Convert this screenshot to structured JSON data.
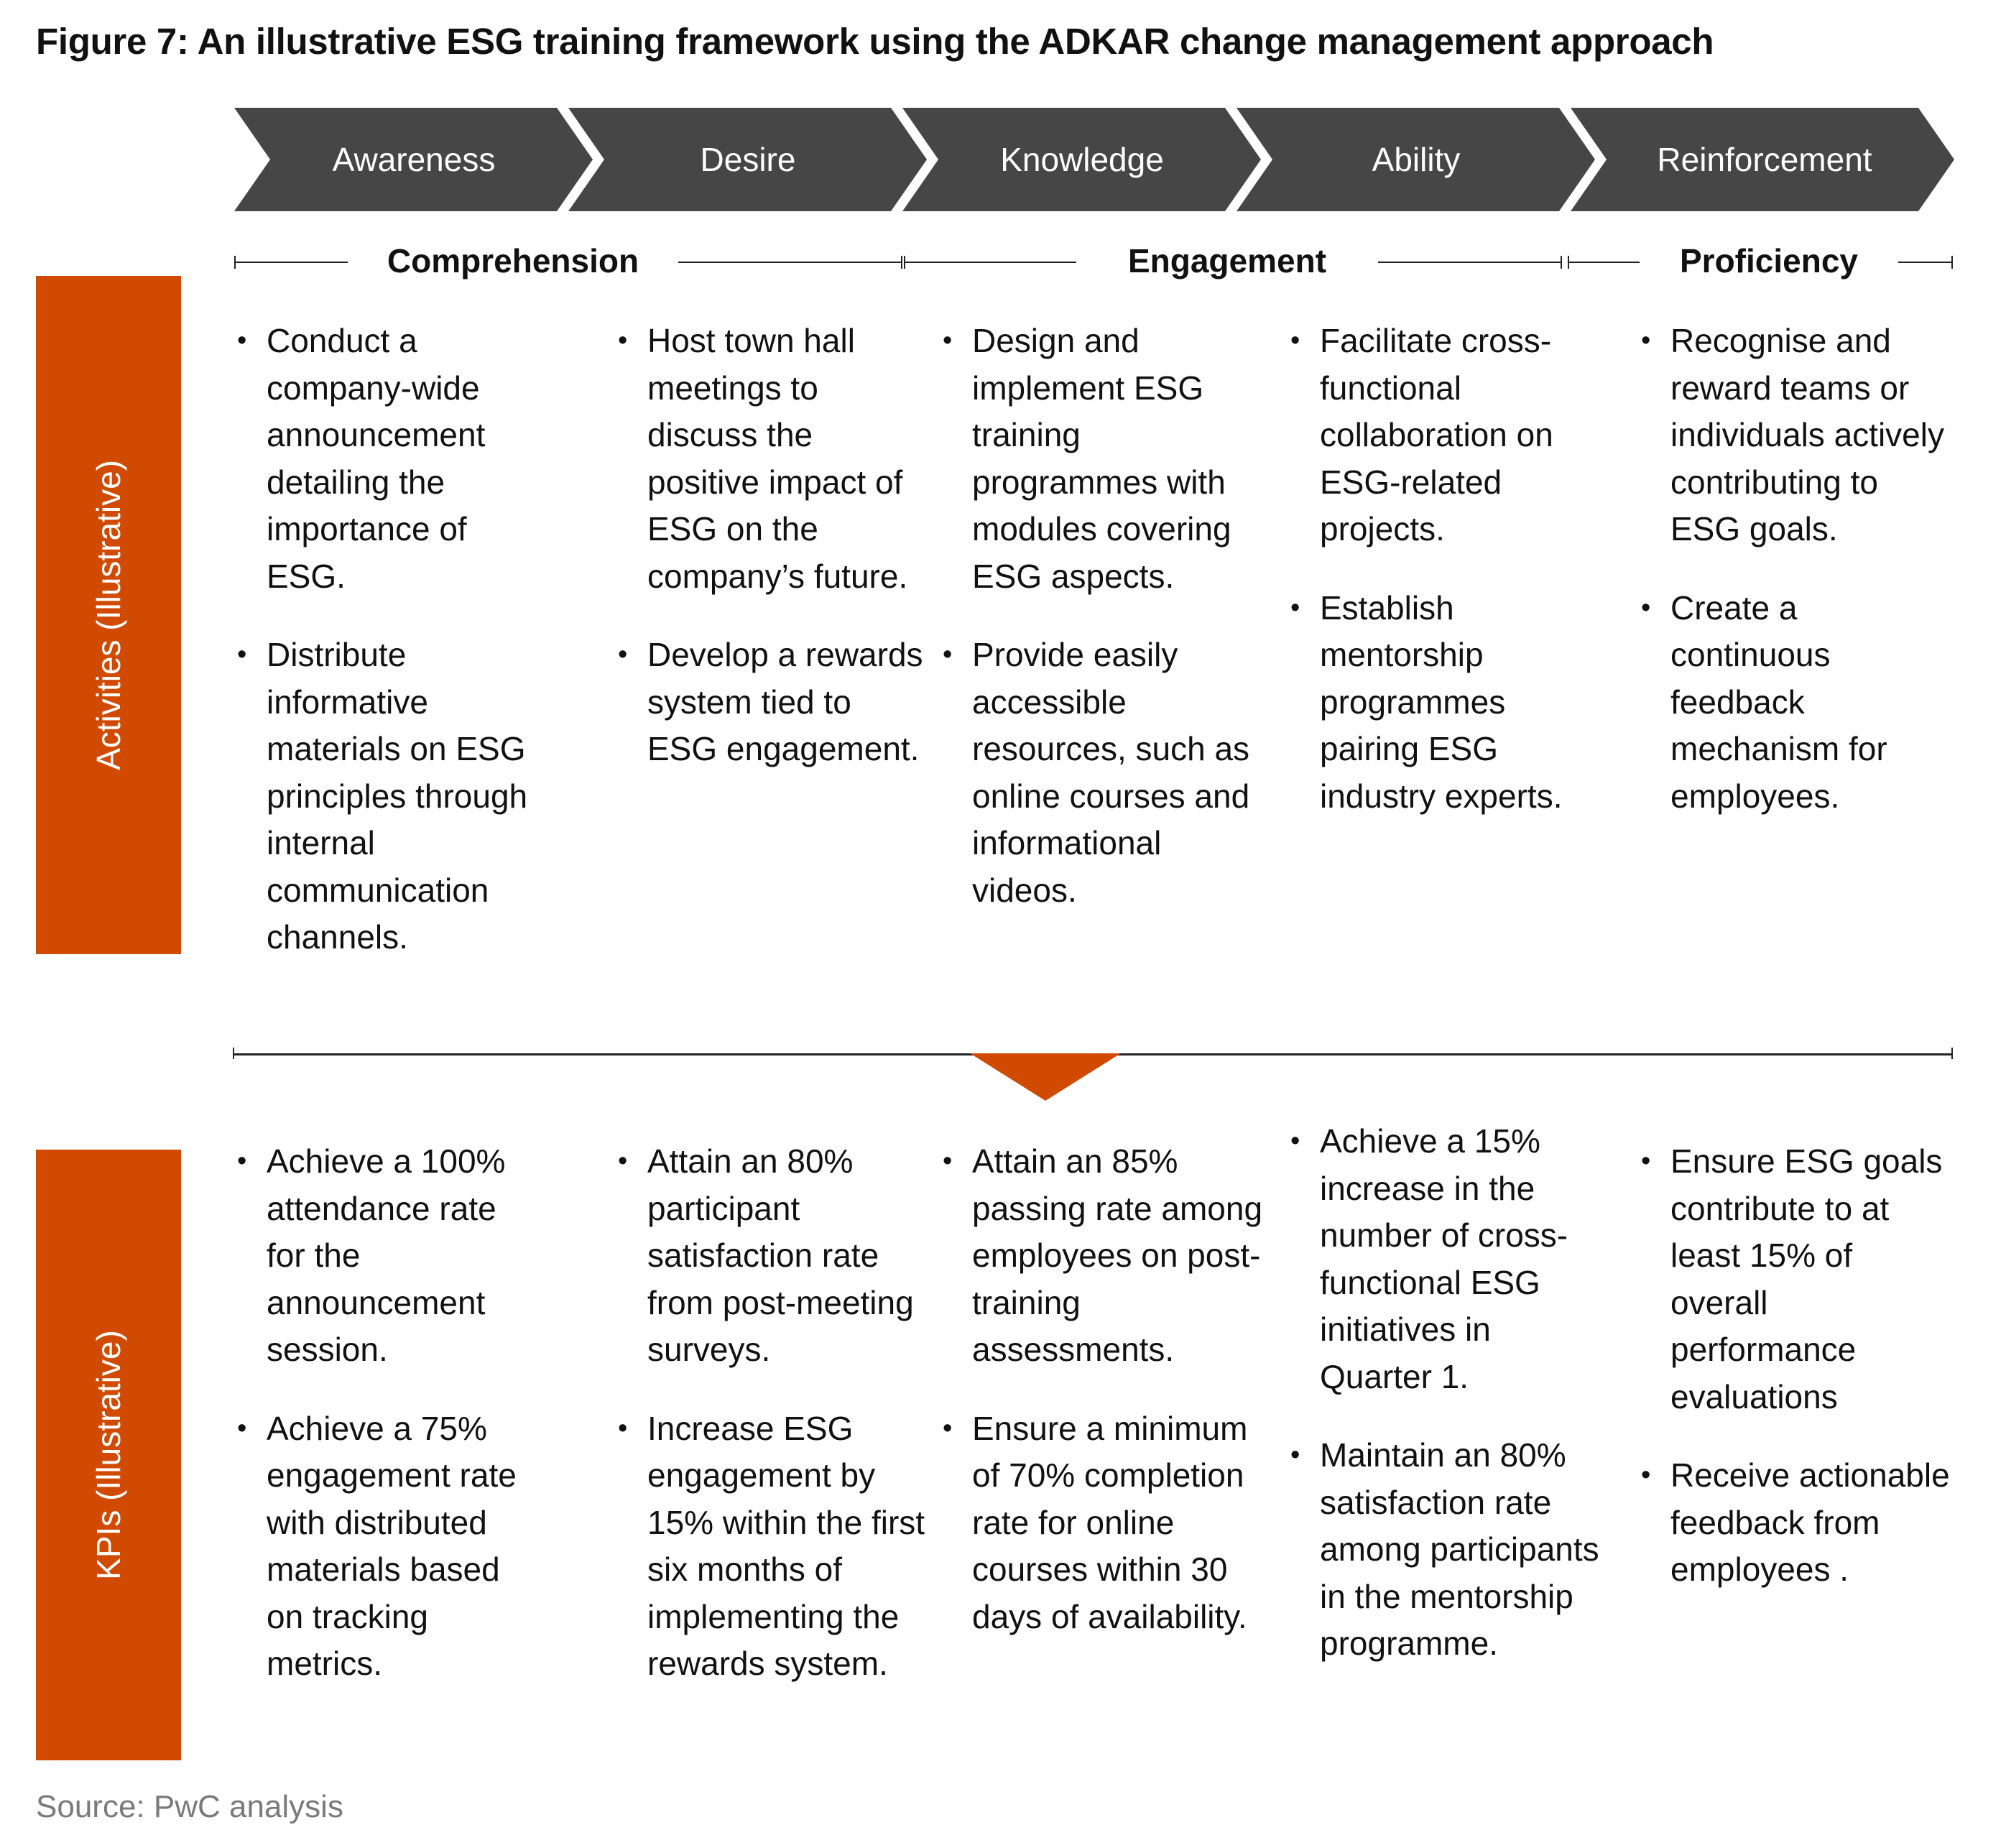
{
  "title": "Figure 7: An illustrative ESG training framework using the ADKAR change management approach",
  "colors": {
    "accent": "#d04a02",
    "chevron": "#464646",
    "text": "#111111"
  },
  "stages": [
    "Awareness",
    "Desire",
    "Knowledge",
    "Ability",
    "Reinforcement"
  ],
  "phases": [
    "Comprehension",
    "Engagement",
    "Proficiency"
  ],
  "rows": {
    "activities_label": "Activities (Illustrative)",
    "kpis_label": "KPIs (Illustrative)"
  },
  "activities": [
    [
      "Conduct a company-wide announcement detailing the importance of ESG.",
      "Distribute informative materials on ESG principles through internal communication channels."
    ],
    [
      "Host town hall meetings to discuss the positive impact of ESG on the company’s future.",
      "Develop a rewards system tied to ESG engagement."
    ],
    [
      "Design and implement ESG training programmes with modules covering ESG aspects.",
      "Provide easily accessible resources, such as online courses and informational videos."
    ],
    [
      "Facilitate cross-functional collaboration on ESG-related projects.",
      "Establish mentorship programmes pairing ESG industry experts."
    ],
    [
      "Recognise and reward teams or individuals actively contributing to ESG goals.",
      "Create a continuous feedback mechanism for employees."
    ]
  ],
  "kpis": [
    [
      "Achieve a 100% attendance rate for the announcement session.",
      "Achieve a 75% engagement rate with distributed materials based on tracking metrics."
    ],
    [
      "Attain an 80% participant satisfaction rate from post-meeting surveys.",
      "Increase ESG engagement by 15% within the first six months of implementing the rewards system."
    ],
    [
      "Attain an 85% passing rate among employees on post-training assessments.",
      "Ensure a minimum of 70% completion rate for online courses within 30 days of availability."
    ],
    [
      "Achieve a 15% increase in the number of cross-functional ESG initiatives in Quarter 1.",
      "Maintain an 80% satisfaction rate among participants in the mentorship programme."
    ],
    [
      "Ensure ESG goals contribute to at least 15% of overall performance evaluations",
      "Receive actionable feedback from employees ."
    ]
  ],
  "source": "Source: PwC analysis"
}
